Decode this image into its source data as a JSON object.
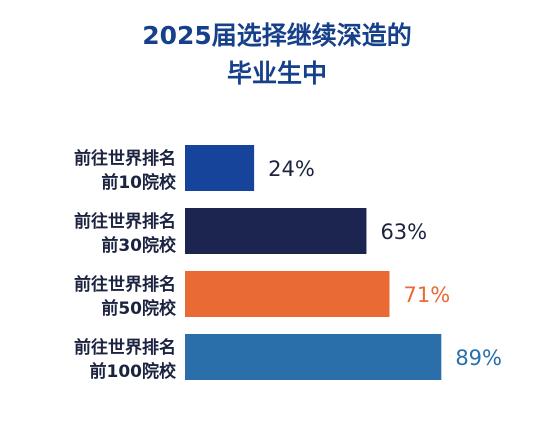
{
  "chart_data": {
    "type": "bar",
    "orientation": "horizontal",
    "title": [
      "2025届选择继续深造的",
      "毕业生中"
    ],
    "categories": [
      [
        "前往世界排名",
        "前10院校"
      ],
      [
        "前往世界排名",
        "前30院校"
      ],
      [
        "前往世界排名",
        "前50院校"
      ],
      [
        "前往世界排名",
        "前100院校"
      ]
    ],
    "values": [
      24,
      63,
      71,
      89
    ],
    "value_labels": [
      "24%",
      "63%",
      "71%",
      "89%"
    ],
    "bar_colors": [
      "#16449a",
      "#1b2550",
      "#ea6a35",
      "#2a6faa"
    ],
    "label_colors": [
      "#1c2340",
      "#1c2340",
      "#ea6a35",
      "#2a6faa"
    ],
    "xlim": [
      0,
      100
    ],
    "grid": false,
    "legend": "none"
  }
}
